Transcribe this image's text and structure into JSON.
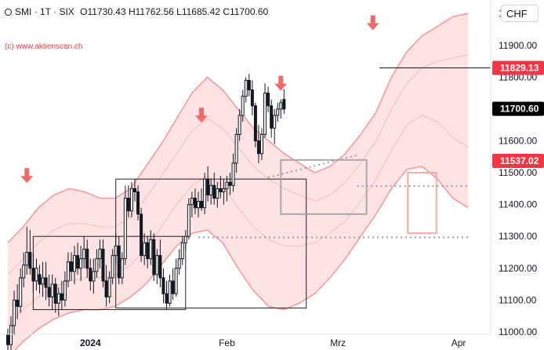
{
  "header": {
    "symbol": "SMI · 1T · SIX",
    "open": "O11730.43",
    "high": "H11762.56",
    "low": "L11685.42",
    "close": "C11700.60",
    "watermark": "(c) www.aktienscan.ch",
    "currency": "CHF"
  },
  "colors": {
    "up": "#131722",
    "down": "#131722",
    "band_fill": "#fde3e3",
    "band_line": "#f59a9a",
    "arrow": "#f06a6a",
    "label_red": "#f23645",
    "label_dark": "#000000"
  },
  "chart_data": {
    "type": "candlestick",
    "y_ticks": [
      "12000.00",
      "11900.00",
      "11800.00",
      "11700.00",
      "11600.00",
      "11500.00",
      "11400.00",
      "11300.00",
      "11200.00",
      "11100.00",
      "11000.00"
    ],
    "x_labels": [
      "2024",
      "Feb",
      "Mrz",
      "Apr"
    ],
    "ylim": [
      10995,
      12030
    ],
    "price_labels": [
      {
        "text": "11829.13",
        "value": 11829.13,
        "color": "red"
      },
      {
        "text": "11700.60",
        "value": 11700.6,
        "color": "dark"
      },
      {
        "text": "11537.02",
        "value": 11537.02,
        "color": "red"
      }
    ],
    "candles": [
      [
        10990,
        11010,
        10900,
        10960
      ],
      [
        10960,
        11050,
        10940,
        11020
      ],
      [
        11020,
        11130,
        10990,
        11100
      ],
      [
        11100,
        11150,
        11040,
        11080
      ],
      [
        11080,
        11200,
        11060,
        11170
      ],
      [
        11170,
        11250,
        11140,
        11210
      ],
      [
        11210,
        11330,
        11180,
        11250
      ],
      [
        11250,
        11320,
        11180,
        11200
      ],
      [
        11200,
        11250,
        11120,
        11160
      ],
      [
        11160,
        11230,
        11130,
        11200
      ],
      [
        11180,
        11210,
        11120,
        11150
      ],
      [
        11150,
        11220,
        11110,
        11170
      ],
      [
        11170,
        11220,
        11100,
        11140
      ],
      [
        11140,
        11180,
        11080,
        11110
      ],
      [
        11110,
        11180,
        11070,
        11150
      ],
      [
        11150,
        11170,
        11060,
        11090
      ],
      [
        11090,
        11140,
        11050,
        11120
      ],
      [
        11120,
        11160,
        11070,
        11100
      ],
      [
        11100,
        11190,
        11080,
        11160
      ],
      [
        11160,
        11250,
        11140,
        11220
      ],
      [
        11220,
        11250,
        11160,
        11190
      ],
      [
        11190,
        11270,
        11150,
        11240
      ],
      [
        11240,
        11280,
        11180,
        11200
      ],
      [
        11200,
        11270,
        11160,
        11230
      ],
      [
        11230,
        11300,
        11200,
        11260
      ],
      [
        11260,
        11290,
        11170,
        11200
      ],
      [
        11200,
        11230,
        11130,
        11160
      ],
      [
        11160,
        11230,
        11120,
        11190
      ],
      [
        11190,
        11260,
        11170,
        11230
      ],
      [
        11230,
        11290,
        11200,
        11260
      ],
      [
        11260,
        11290,
        11140,
        11160
      ],
      [
        11160,
        11210,
        11080,
        11110
      ],
      [
        11110,
        11190,
        11090,
        11170
      ],
      [
        11170,
        11260,
        11150,
        11240
      ],
      [
        11240,
        11310,
        11210,
        11270
      ],
      [
        11270,
        11300,
        11150,
        11170
      ],
      [
        11170,
        11250,
        11150,
        11230
      ],
      [
        11230,
        11460,
        11210,
        11420
      ],
      [
        11420,
        11460,
        11360,
        11380
      ],
      [
        11380,
        11470,
        11360,
        11450
      ],
      [
        11450,
        11480,
        11410,
        11440
      ],
      [
        11440,
        11460,
        11350,
        11370
      ],
      [
        11370,
        11390,
        11220,
        11240
      ],
      [
        11240,
        11310,
        11210,
        11280
      ],
      [
        11280,
        11300,
        11200,
        11230
      ],
      [
        11230,
        11320,
        11210,
        11290
      ],
      [
        11290,
        11310,
        11160,
        11180
      ],
      [
        11180,
        11260,
        11150,
        11240
      ],
      [
        11240,
        11290,
        11140,
        11170
      ],
      [
        11170,
        11200,
        11090,
        11120
      ],
      [
        11120,
        11160,
        11070,
        11090
      ],
      [
        11090,
        11180,
        11080,
        11160
      ],
      [
        11160,
        11200,
        11100,
        11120
      ],
      [
        11120,
        11230,
        11110,
        11200
      ],
      [
        11200,
        11260,
        11180,
        11230
      ],
      [
        11230,
        11300,
        11210,
        11280
      ],
      [
        11280,
        11320,
        11260,
        11300
      ],
      [
        11300,
        11420,
        11290,
        11400
      ],
      [
        11400,
        11440,
        11360,
        11420
      ],
      [
        11420,
        11450,
        11370,
        11390
      ],
      [
        11390,
        11440,
        11360,
        11410
      ],
      [
        11410,
        11450,
        11380,
        11390
      ],
      [
        11390,
        11500,
        11370,
        11480
      ],
      [
        11480,
        11520,
        11410,
        11430
      ],
      [
        11430,
        11480,
        11400,
        11460
      ],
      [
        11460,
        11500,
        11400,
        11420
      ],
      [
        11420,
        11470,
        11390,
        11450
      ],
      [
        11450,
        11490,
        11420,
        11440
      ],
      [
        11440,
        11480,
        11400,
        11450
      ],
      [
        11450,
        11490,
        11410,
        11470
      ],
      [
        11470,
        11500,
        11430,
        11460
      ],
      [
        11460,
        11560,
        11440,
        11530
      ],
      [
        11530,
        11640,
        11500,
        11620
      ],
      [
        11620,
        11700,
        11600,
        11680
      ],
      [
        11680,
        11760,
        11660,
        11740
      ],
      [
        11740,
        11800,
        11720,
        11790
      ],
      [
        11790,
        11810,
        11740,
        11760
      ],
      [
        11760,
        11790,
        11680,
        11710
      ],
      [
        11710,
        11720,
        11580,
        11600
      ],
      [
        11600,
        11650,
        11530,
        11560
      ],
      [
        11560,
        11640,
        11540,
        11620
      ],
      [
        11620,
        11780,
        11610,
        11750
      ],
      [
        11750,
        11770,
        11690,
        11710
      ],
      [
        11710,
        11730,
        11610,
        11640
      ],
      [
        11640,
        11700,
        11590,
        11680
      ],
      [
        11680,
        11720,
        11660,
        11700
      ],
      [
        11700,
        11730,
        11670,
        11720
      ],
      [
        11730,
        11763,
        11685,
        11700
      ]
    ],
    "bands": {
      "outer_upper": [
        11280,
        11330,
        11390,
        11430,
        11450,
        11440,
        11420,
        11420,
        11450,
        11520,
        11590,
        11670,
        11750,
        11800,
        11760,
        11700,
        11640,
        11600,
        11560,
        11530,
        11500,
        11520,
        11560,
        11620,
        11690,
        11800,
        11880,
        11930,
        11960,
        11990,
        12000
      ],
      "inner_upper": [
        11180,
        11230,
        11280,
        11320,
        11340,
        11340,
        11330,
        11330,
        11360,
        11420,
        11490,
        11560,
        11630,
        11670,
        11640,
        11580,
        11520,
        11480,
        11450,
        11430,
        11410,
        11430,
        11470,
        11530,
        11600,
        11700,
        11780,
        11830,
        11850,
        11860,
        11870
      ],
      "inner_lower": [
        11020,
        11070,
        11110,
        11140,
        11160,
        11170,
        11170,
        11180,
        11210,
        11260,
        11330,
        11400,
        11460,
        11490,
        11460,
        11390,
        11330,
        11290,
        11270,
        11270,
        11280,
        11310,
        11350,
        11410,
        11480,
        11570,
        11650,
        11680,
        11660,
        11610,
        11580
      ],
      "outer_lower": [
        10920,
        10970,
        11010,
        11040,
        11060,
        11070,
        11070,
        11080,
        11110,
        11150,
        11210,
        11270,
        11310,
        11320,
        11280,
        11200,
        11130,
        11080,
        11070,
        11090,
        11120,
        11170,
        11230,
        11300,
        11370,
        11450,
        11510,
        11520,
        11480,
        11420,
        11390
      ]
    },
    "rectangles": [
      {
        "from": 8,
        "to": 56,
        "y1": 11300,
        "y2": 11070,
        "color": "dark"
      },
      {
        "from": 34,
        "to": 94,
        "y1": 11480,
        "y2": 11075,
        "color": "dark"
      },
      {
        "from": 86,
        "to": 113,
        "y1": 11540,
        "y2": 11370,
        "color": "gray"
      },
      {
        "from": 126,
        "to": 135,
        "y1": 11500,
        "y2": 11310,
        "color": "pink"
      }
    ],
    "dotted_lines": [
      {
        "from": 60,
        "to": 145,
        "value": 11297
      },
      {
        "from": 110,
        "to": 145,
        "value": 11458
      },
      {
        "from": 82,
        "to": 110,
        "value": 11485,
        "to_value": 11555
      }
    ],
    "resistance_line": {
      "from": 117,
      "to": 145,
      "value": 11829.13
    },
    "arrows": [
      {
        "slot": 6,
        "value": 11460
      },
      {
        "slot": 61,
        "value": 11650
      },
      {
        "slot": 86,
        "value": 11750
      },
      {
        "slot": 115,
        "value": 11940
      }
    ]
  }
}
